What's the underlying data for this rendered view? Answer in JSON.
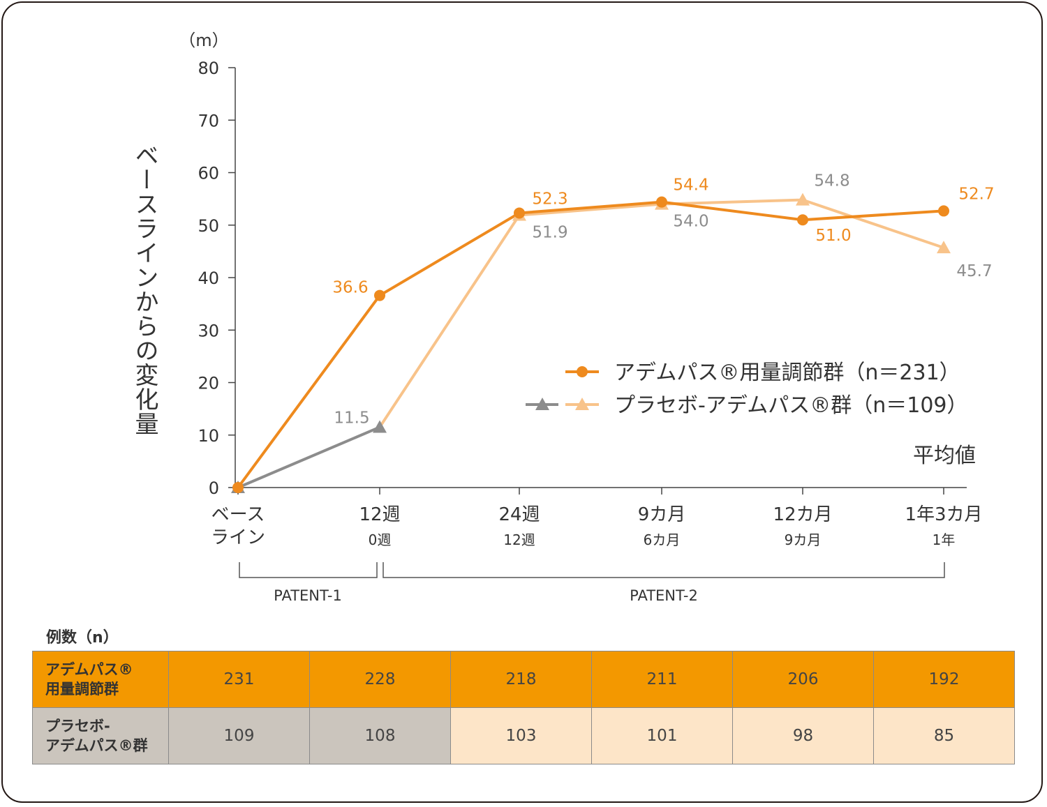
{
  "chart_data": {
    "type": "line",
    "y_unit": "（m）",
    "ylabel": "ベースラインからの変化量",
    "ylim": [
      0,
      80
    ],
    "yticks": [
      0,
      10,
      20,
      30,
      40,
      50,
      60,
      70,
      80
    ],
    "statistic_label": "平均値",
    "x_ticks": [
      {
        "top": "ベース",
        "top2": "ライン",
        "bottom": ""
      },
      {
        "top": "12週",
        "bottom": "0週"
      },
      {
        "top": "24週",
        "bottom": "12週"
      },
      {
        "top": "9カ月",
        "bottom": "6カ月"
      },
      {
        "top": "12カ月",
        "bottom": "9カ月"
      },
      {
        "top": "1年3カ月",
        "bottom": "1年"
      }
    ],
    "series": [
      {
        "name": "アデムパス®用量調節群（n＝231）",
        "marker": "circle",
        "color": "#ee8a1e",
        "values": [
          0,
          36.6,
          52.3,
          54.4,
          51.0,
          52.7
        ],
        "labels": [
          "",
          "36.6",
          "52.3",
          "54.4",
          "51.0",
          "52.7"
        ]
      },
      {
        "name": "プラセボ-アデムパス®群（n＝109）",
        "marker": "triangle",
        "color_patent1": "#8c8c8c",
        "color_patent2": "#f8c38a",
        "values": [
          0,
          11.5,
          51.9,
          54.0,
          54.8,
          45.7
        ],
        "labels": [
          "",
          "11.5",
          "51.9",
          "54.0",
          "54.8",
          "45.7"
        ]
      }
    ],
    "studies": [
      {
        "name": "PATENT-1",
        "from_index": 0,
        "to_index": 1
      },
      {
        "name": "PATENT-2",
        "from_index": 1,
        "to_index": 5
      }
    ]
  },
  "table": {
    "title": "例数（n）",
    "rows": [
      {
        "label_line1": "アデムパス®",
        "label_line2": "用量調節群",
        "values": [
          "231",
          "228",
          "218",
          "211",
          "206",
          "192"
        ]
      },
      {
        "label_line1": "プラセボ-",
        "label_line2": "アデムパス®群",
        "values": [
          "109",
          "108",
          "103",
          "101",
          "98",
          "85"
        ]
      }
    ]
  },
  "colors": {
    "orange": "#ee8a1e",
    "light_orange": "#f8c38a",
    "gray": "#8c8c8c",
    "table_orange": "#f39800",
    "table_gray": "#cbc5bd",
    "table_peach": "#fde5c8"
  }
}
